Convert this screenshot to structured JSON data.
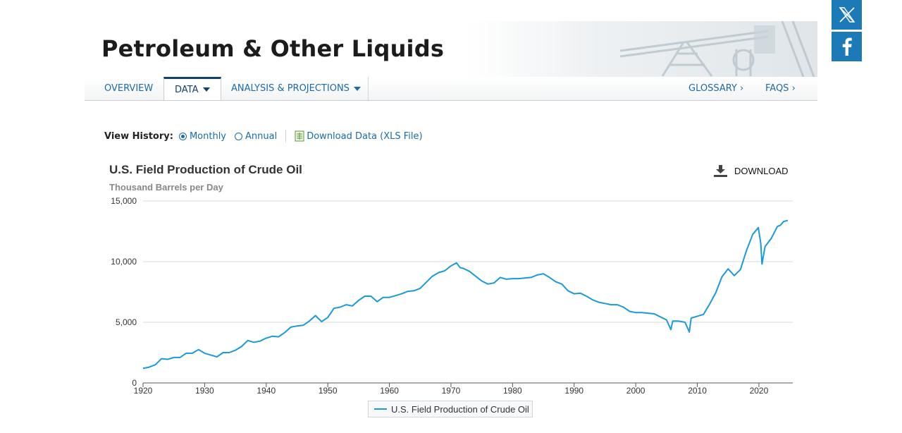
{
  "header": {
    "title": "Petroleum & Other Liquids"
  },
  "social": [
    {
      "name": "x",
      "icon": "x-logo-icon"
    },
    {
      "name": "facebook",
      "icon": "facebook-logo-icon"
    }
  ],
  "nav": {
    "overview": "OVERVIEW",
    "data": "DATA",
    "analysis": "ANALYSIS & PROJECTIONS",
    "glossary": "GLOSSARY ›",
    "faqs": "FAQS ›"
  },
  "view_history": {
    "label": "View History:",
    "options": [
      "Monthly",
      "Annual"
    ],
    "selected": "Monthly",
    "download_link": "Download Data (XLS File)"
  },
  "chart_download_label": "DOWNLOAD",
  "colors": {
    "series": "#1a9ad6",
    "nav_text": "#1b6aa9",
    "social_bg": "#1d7ab8"
  },
  "chart_data": {
    "type": "line",
    "title": "U.S. Field Production of Crude Oil",
    "subtitle": "Thousand Barrels per Day",
    "ylim": [
      0,
      15000
    ],
    "yticks": [
      0,
      5000,
      10000,
      15000
    ],
    "ytick_labels": [
      "0",
      "5,000",
      "10,000",
      "15,000"
    ],
    "xlim": [
      1920,
      2025.5
    ],
    "xticks": [
      1920,
      1930,
      1940,
      1950,
      1960,
      1970,
      1980,
      1990,
      2000,
      2010,
      2020
    ],
    "grid": true,
    "legend": "bottom-center",
    "series": [
      {
        "name": "U.S. Field Production of Crude Oil",
        "x": [
          1920,
          1921,
          1922,
          1923,
          1924,
          1925,
          1926,
          1927,
          1928,
          1929,
          1930,
          1931,
          1932,
          1933,
          1934,
          1935,
          1936,
          1937,
          1938,
          1939,
          1940,
          1941,
          1942,
          1943,
          1944,
          1945,
          1946,
          1947,
          1948,
          1949,
          1950,
          1951,
          1952,
          1953,
          1954,
          1955,
          1956,
          1957,
          1958,
          1959,
          1960,
          1961,
          1962,
          1963,
          1964,
          1965,
          1966,
          1967,
          1968,
          1969,
          1970,
          1970.9,
          1971.5,
          1972,
          1973,
          1974,
          1975,
          1976,
          1977,
          1978,
          1979,
          1980,
          1981,
          1982,
          1983,
          1984,
          1985,
          1986,
          1987,
          1988,
          1989,
          1990,
          1991,
          1992,
          1993,
          1994,
          1995,
          1996,
          1997,
          1998,
          1999,
          2000,
          2001,
          2002,
          2003,
          2004,
          2005,
          2005.7,
          2006,
          2007,
          2008,
          2008.7,
          2009,
          2010,
          2011,
          2012,
          2013,
          2014,
          2015,
          2016,
          2017,
          2018,
          2019,
          2019.9,
          2020.3,
          2020.5,
          2021,
          2022,
          2023,
          2023.5,
          2024,
          2024.7
        ],
        "values": [
          1200,
          1300,
          1500,
          2000,
          1950,
          2100,
          2100,
          2450,
          2450,
          2750,
          2450,
          2300,
          2150,
          2500,
          2500,
          2700,
          3000,
          3500,
          3350,
          3450,
          3700,
          3850,
          3800,
          4150,
          4600,
          4700,
          4750,
          5100,
          5550,
          5050,
          5400,
          6150,
          6250,
          6450,
          6350,
          6800,
          7150,
          7150,
          6700,
          7050,
          7050,
          7200,
          7350,
          7550,
          7600,
          7800,
          8300,
          8800,
          9100,
          9250,
          9650,
          9900,
          9500,
          9450,
          9200,
          8800,
          8400,
          8150,
          8250,
          8700,
          8550,
          8600,
          8600,
          8650,
          8700,
          8900,
          9000,
          8700,
          8350,
          8150,
          7600,
          7350,
          7400,
          7150,
          6850,
          6650,
          6550,
          6450,
          6450,
          6250,
          5900,
          5800,
          5800,
          5750,
          5700,
          5450,
          5200,
          4400,
          5100,
          5100,
          5000,
          4200,
          5350,
          5500,
          5650,
          6500,
          7450,
          8750,
          9400,
          8850,
          9350,
          10950,
          12250,
          12800,
          11500,
          9800,
          11250,
          11900,
          12900,
          13000,
          13300,
          13400
        ]
      }
    ]
  }
}
